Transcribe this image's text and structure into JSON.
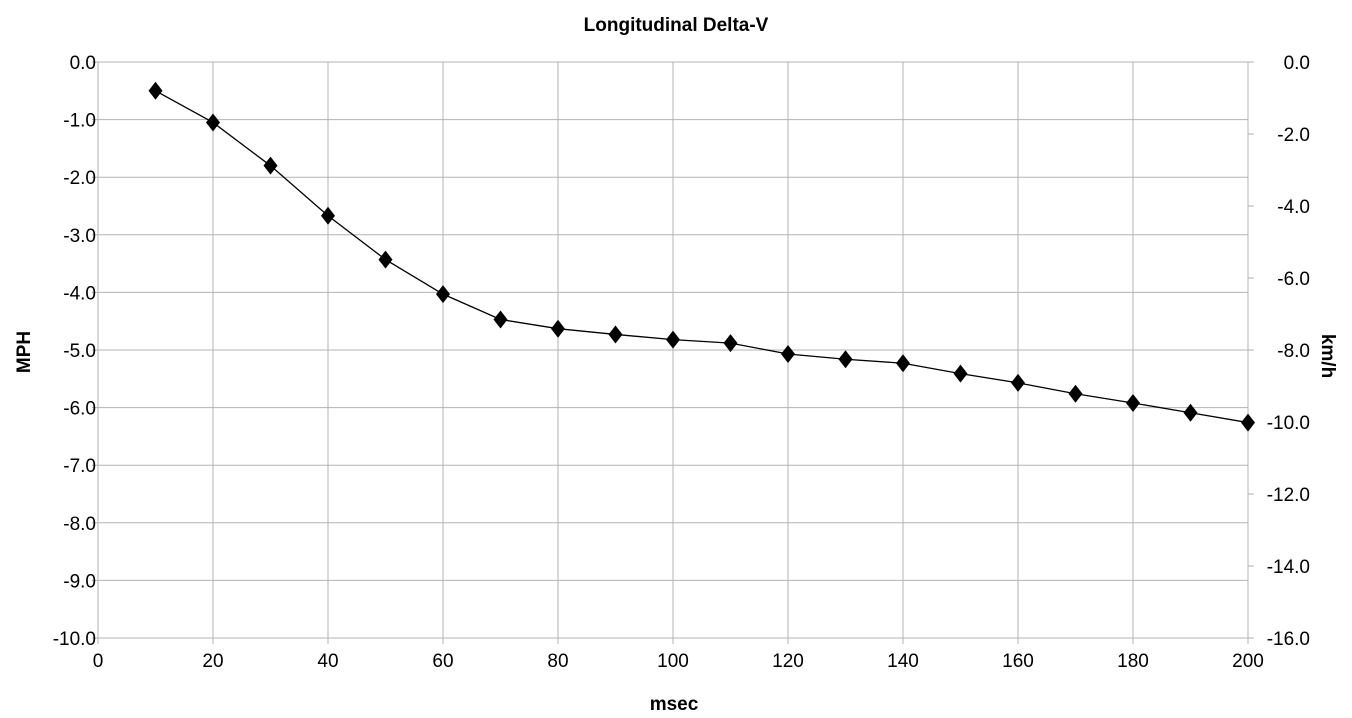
{
  "chart_data": {
    "type": "line",
    "title": "Longitudinal Delta-V",
    "xlabel": "msec",
    "ylabel": "MPH",
    "y2label": "km/h",
    "xlim": [
      0,
      200
    ],
    "ylim": [
      -10,
      0
    ],
    "y2lim": [
      -16,
      0
    ],
    "x_ticks": [
      "0",
      "20",
      "40",
      "60",
      "80",
      "100",
      "120",
      "140",
      "160",
      "180",
      "200"
    ],
    "y_ticks": [
      "0.0",
      "-1.0",
      "-2.0",
      "-3.0",
      "-4.0",
      "-5.0",
      "-6.0",
      "-7.0",
      "-8.0",
      "-9.0",
      "-10.0"
    ],
    "y2_ticks": [
      "0.0",
      "-2.0",
      "-4.0",
      "-6.0",
      "-8.0",
      "-10.0",
      "-12.0",
      "-14.0",
      "-16.0"
    ],
    "grid": true,
    "marker": "diamond",
    "series": [
      {
        "x": [
          10,
          20,
          30,
          40,
          50,
          60,
          70,
          80,
          90,
          100,
          110,
          120,
          130,
          140,
          150,
          160,
          170,
          180,
          190,
          200
        ],
        "values": [
          -0.5,
          -1.05,
          -1.8,
          -2.67,
          -3.43,
          -4.03,
          -4.47,
          -4.63,
          -4.73,
          -4.82,
          -4.88,
          -5.07,
          -5.16,
          -5.23,
          -5.41,
          -5.57,
          -5.76,
          -5.92,
          -6.09,
          -6.26
        ]
      }
    ]
  }
}
